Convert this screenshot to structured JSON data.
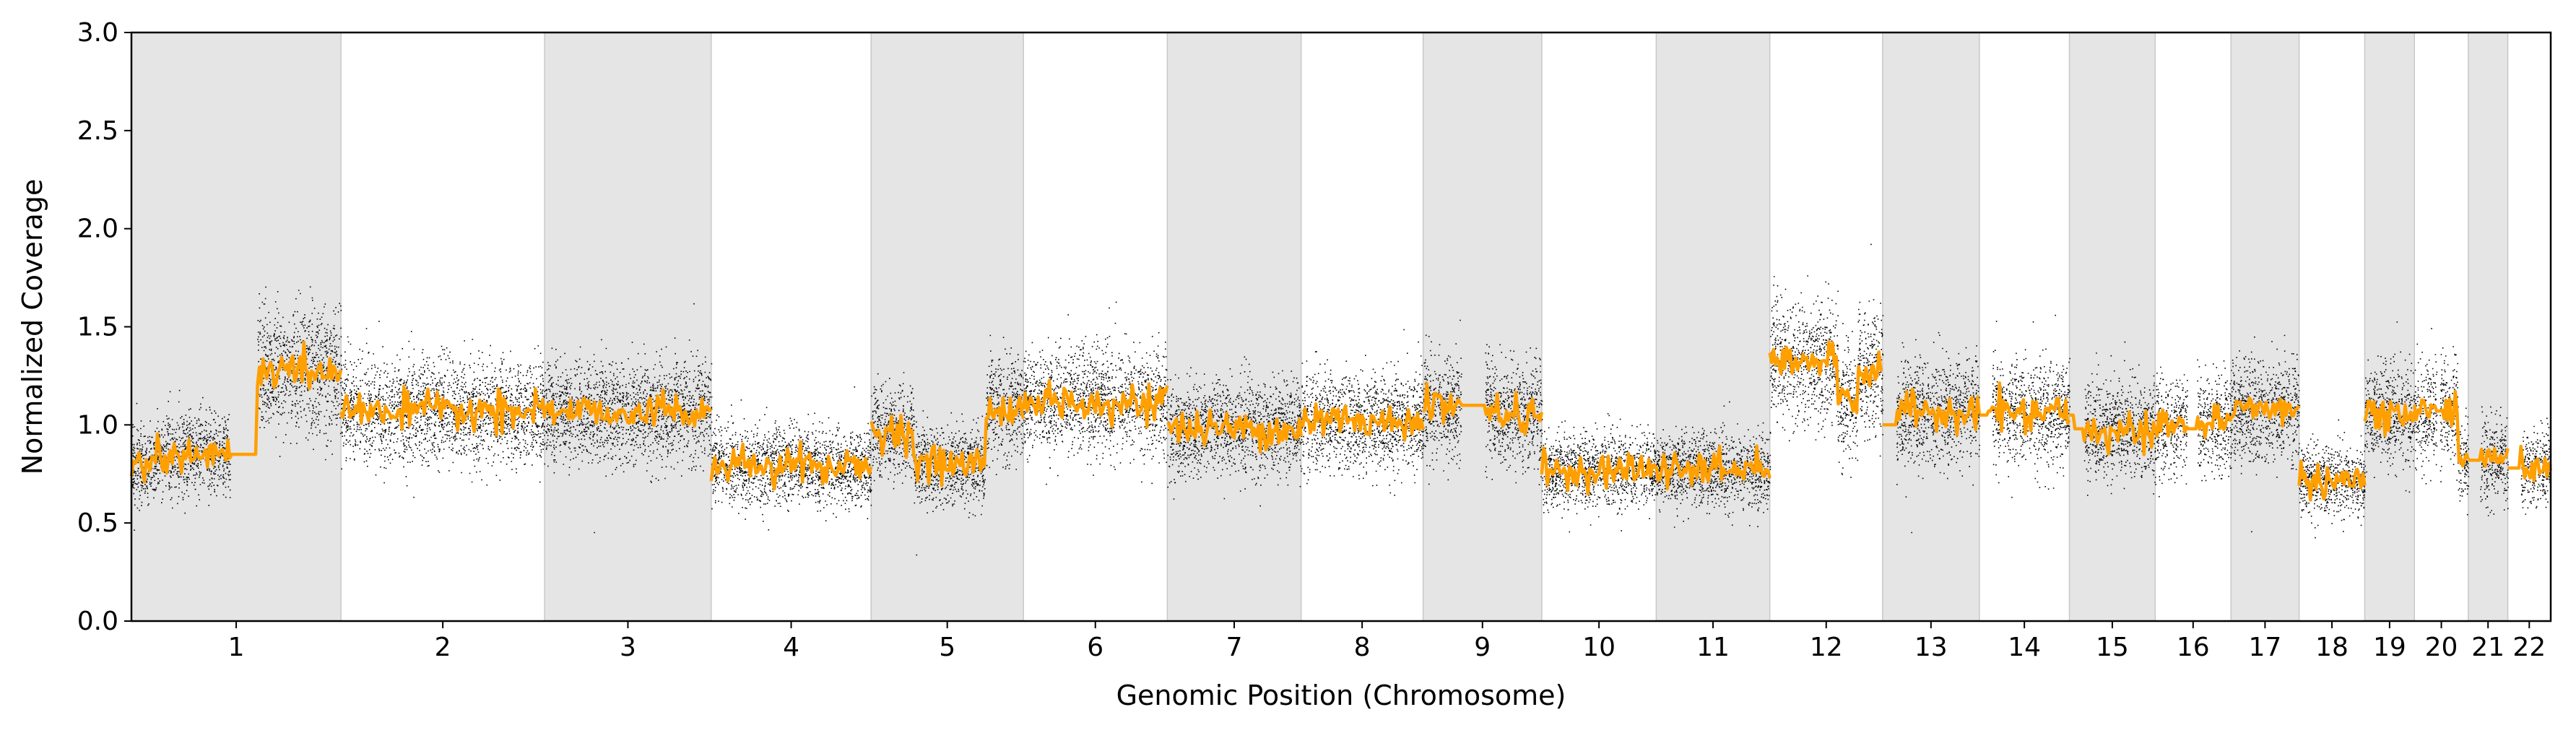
{
  "chart_data": {
    "type": "scatter",
    "title": "",
    "xlabel": "Genomic Position (Chromosome)",
    "ylabel": "Normalized Coverage",
    "ylim": [
      0,
      3
    ],
    "yticks": [
      "0.0",
      "0.5",
      "1.0",
      "1.5",
      "2.0",
      "2.5",
      "3.0"
    ],
    "grid": false,
    "legend": "none",
    "x_axis": "chromosome",
    "colors": {
      "points": "#000000",
      "segments": "#ff9f00",
      "shade": "#e5e5e5",
      "axis": "#000000"
    },
    "chromosomes": [
      {
        "label": "1",
        "start": 0.0,
        "end": 249.0,
        "shaded": true,
        "segments": [
          {
            "from": 0.0,
            "to": 0.12,
            "mean": 0.8
          },
          {
            "from": 0.12,
            "to": 0.5,
            "mean": 0.85
          },
          {
            "from": 0.5,
            "to": 0.6,
            "mean": 0.85
          },
          {
            "from": 0.6,
            "to": 1.0,
            "mean": 1.28
          }
        ],
        "gaps": [
          [
            0.47,
            0.6
          ]
        ]
      },
      {
        "label": "2",
        "start": 249.0,
        "end": 491.0,
        "shaded": false,
        "segments": [
          {
            "from": 0.0,
            "to": 1.0,
            "mean": 1.07
          }
        ],
        "gaps": []
      },
      {
        "label": "3",
        "start": 491.0,
        "end": 689.0,
        "shaded": true,
        "segments": [
          {
            "from": 0.0,
            "to": 1.0,
            "mean": 1.07
          }
        ],
        "gaps": []
      },
      {
        "label": "4",
        "start": 689.0,
        "end": 879.0,
        "shaded": false,
        "segments": [
          {
            "from": 0.0,
            "to": 1.0,
            "mean": 0.79
          }
        ],
        "gaps": []
      },
      {
        "label": "5",
        "start": 879.0,
        "end": 1060.0,
        "shaded": true,
        "segments": [
          {
            "from": 0.0,
            "to": 0.28,
            "mean": 0.97
          },
          {
            "from": 0.28,
            "to": 0.75,
            "mean": 0.8
          },
          {
            "from": 0.75,
            "to": 1.0,
            "mean": 1.08
          }
        ],
        "gaps": []
      },
      {
        "label": "6",
        "start": 1060.0,
        "end": 1231.0,
        "shaded": false,
        "segments": [
          {
            "from": 0.0,
            "to": 1.0,
            "mean": 1.12
          }
        ],
        "gaps": []
      },
      {
        "label": "7",
        "start": 1231.0,
        "end": 1390.0,
        "shaded": true,
        "segments": [
          {
            "from": 0.0,
            "to": 1.0,
            "mean": 0.98
          }
        ],
        "gaps": []
      },
      {
        "label": "8",
        "start": 1390.0,
        "end": 1535.0,
        "shaded": false,
        "segments": [
          {
            "from": 0.0,
            "to": 1.0,
            "mean": 1.02
          }
        ],
        "gaps": []
      },
      {
        "label": "9",
        "start": 1535.0,
        "end": 1676.0,
        "shaded": true,
        "segments": [
          {
            "from": 0.0,
            "to": 0.55,
            "mean": 1.1
          },
          {
            "from": 0.55,
            "to": 1.0,
            "mean": 1.05
          }
        ],
        "gaps": [
          [
            0.32,
            0.52
          ]
        ]
      },
      {
        "label": "10",
        "start": 1676.0,
        "end": 1812.0,
        "shaded": false,
        "segments": [
          {
            "from": 0.0,
            "to": 1.0,
            "mean": 0.77
          }
        ],
        "gaps": []
      },
      {
        "label": "11",
        "start": 1812.0,
        "end": 1947.0,
        "shaded": true,
        "segments": [
          {
            "from": 0.0,
            "to": 1.0,
            "mean": 0.77
          }
        ],
        "gaps": []
      },
      {
        "label": "12",
        "start": 1947.0,
        "end": 2081.0,
        "shaded": false,
        "segments": [
          {
            "from": 0.0,
            "to": 0.6,
            "mean": 1.32
          },
          {
            "from": 0.6,
            "to": 0.78,
            "mean": 1.13
          },
          {
            "from": 0.78,
            "to": 1.0,
            "mean": 1.27
          }
        ],
        "gaps": []
      },
      {
        "label": "13",
        "start": 2081.0,
        "end": 2196.0,
        "shaded": true,
        "segments": [
          {
            "from": 0.0,
            "to": 0.15,
            "mean": 1.0
          },
          {
            "from": 0.15,
            "to": 1.0,
            "mean": 1.07
          }
        ],
        "gaps": [
          [
            0.0,
            0.14
          ]
        ]
      },
      {
        "label": "14",
        "start": 2196.0,
        "end": 2303.0,
        "shaded": false,
        "segments": [
          {
            "from": 0.0,
            "to": 0.1,
            "mean": 1.05
          },
          {
            "from": 0.1,
            "to": 1.0,
            "mean": 1.07
          }
        ],
        "gaps": [
          [
            0.0,
            0.14
          ]
        ]
      },
      {
        "label": "15",
        "start": 2303.0,
        "end": 2405.0,
        "shaded": true,
        "segments": [
          {
            "from": 0.0,
            "to": 0.06,
            "mean": 1.05
          },
          {
            "from": 0.06,
            "to": 1.0,
            "mean": 0.98
          }
        ],
        "gaps": [
          [
            0.0,
            0.17
          ]
        ]
      },
      {
        "label": "16",
        "start": 2405.0,
        "end": 2495.0,
        "shaded": false,
        "segments": [
          {
            "from": 0.0,
            "to": 0.42,
            "mean": 1.0
          },
          {
            "from": 0.42,
            "to": 0.55,
            "mean": 0.98
          },
          {
            "from": 0.55,
            "to": 1.0,
            "mean": 1.0
          }
        ],
        "gaps": [
          [
            0.42,
            0.55
          ]
        ]
      },
      {
        "label": "17",
        "start": 2495.0,
        "end": 2576.0,
        "shaded": true,
        "segments": [
          {
            "from": 0.0,
            "to": 1.0,
            "mean": 1.08
          }
        ],
        "gaps": []
      },
      {
        "label": "18",
        "start": 2576.0,
        "end": 2654.0,
        "shaded": false,
        "segments": [
          {
            "from": 0.0,
            "to": 1.0,
            "mean": 0.72
          }
        ],
        "gaps": []
      },
      {
        "label": "19",
        "start": 2654.0,
        "end": 2713.0,
        "shaded": true,
        "segments": [
          {
            "from": 0.0,
            "to": 1.0,
            "mean": 1.05
          }
        ],
        "gaps": []
      },
      {
        "label": "20",
        "start": 2713.0,
        "end": 2777.0,
        "shaded": false,
        "segments": [
          {
            "from": 0.0,
            "to": 0.8,
            "mean": 1.07
          },
          {
            "from": 0.8,
            "to": 1.0,
            "mean": 0.82
          }
        ],
        "gaps": [
          [
            0.41,
            0.47
          ]
        ]
      },
      {
        "label": "21",
        "start": 2777.0,
        "end": 2824.0,
        "shaded": true,
        "segments": [
          {
            "from": 0.0,
            "to": 1.0,
            "mean": 0.82
          }
        ],
        "gaps": [
          [
            0.0,
            0.3
          ]
        ]
      },
      {
        "label": "22",
        "start": 2824.0,
        "end": 2875.0,
        "shaded": false,
        "segments": [
          {
            "from": 0.0,
            "to": 1.0,
            "mean": 0.78
          }
        ],
        "gaps": [
          [
            0.0,
            0.3
          ]
        ]
      }
    ]
  }
}
